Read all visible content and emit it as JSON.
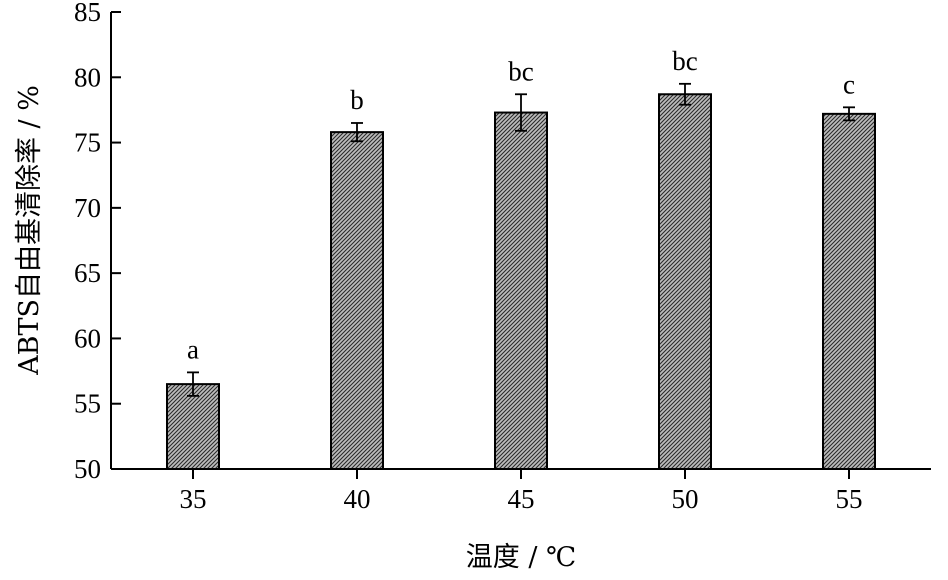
{
  "chart_data": {
    "type": "bar",
    "xlabel": "温度 / ℃",
    "ylabel": "ABTS自由基清除率 / %",
    "ylim": [
      50,
      85
    ],
    "yticks": [
      50,
      55,
      60,
      65,
      70,
      75,
      80,
      85
    ],
    "categories": [
      "35",
      "40",
      "45",
      "50",
      "55"
    ],
    "values": [
      56.5,
      75.8,
      77.3,
      78.7,
      77.2
    ],
    "errors": [
      0.9,
      0.7,
      1.4,
      0.8,
      0.5
    ],
    "significance": [
      "a",
      "b",
      "bc",
      "bc",
      "c"
    ],
    "bar_fill": "hatched",
    "grid": false,
    "legend": "none"
  }
}
